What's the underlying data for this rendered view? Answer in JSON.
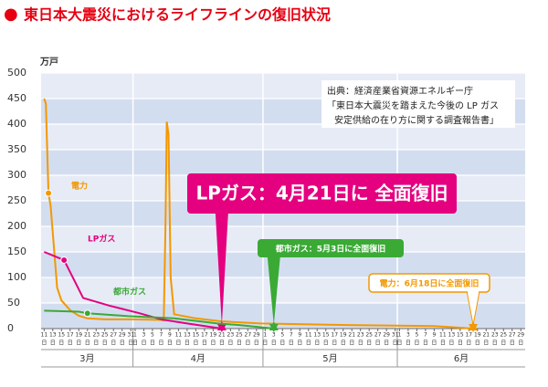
{
  "chart_data": {
    "type": "line",
    "title": "東日本大震災におけるライフラインの復旧状況",
    "title_bullet": "●",
    "y_unit": "万戸",
    "ylim": [
      0,
      500
    ],
    "yticks": [
      0,
      50,
      100,
      150,
      200,
      250,
      300,
      350,
      400,
      450,
      500
    ],
    "xlim": [
      -0.7,
      111
    ],
    "day_unit": "日",
    "xticks": [
      {
        "value": 0,
        "label": "11"
      },
      {
        "value": 2,
        "label": "13"
      },
      {
        "value": 4,
        "label": "15"
      },
      {
        "value": 6,
        "label": "17"
      },
      {
        "value": 8,
        "label": "19"
      },
      {
        "value": 10,
        "label": "21"
      },
      {
        "value": 12,
        "label": "23"
      },
      {
        "value": 14,
        "label": "25"
      },
      {
        "value": 16,
        "label": "27"
      },
      {
        "value": 18,
        "label": "29"
      },
      {
        "value": 20,
        "label": "31"
      },
      {
        "value": 21,
        "label": "1"
      },
      {
        "value": 23,
        "label": "3"
      },
      {
        "value": 25,
        "label": "5"
      },
      {
        "value": 27,
        "label": "7"
      },
      {
        "value": 29,
        "label": "9"
      },
      {
        "value": 31,
        "label": "11"
      },
      {
        "value": 33,
        "label": "13"
      },
      {
        "value": 35,
        "label": "15"
      },
      {
        "value": 37,
        "label": "17"
      },
      {
        "value": 39,
        "label": "19"
      },
      {
        "value": 41,
        "label": "21"
      },
      {
        "value": 43,
        "label": "23"
      },
      {
        "value": 45,
        "label": "25"
      },
      {
        "value": 47,
        "label": "27"
      },
      {
        "value": 49,
        "label": "29"
      },
      {
        "value": 51,
        "label": "1"
      },
      {
        "value": 53,
        "label": "3"
      },
      {
        "value": 55,
        "label": "5"
      },
      {
        "value": 57,
        "label": "7"
      },
      {
        "value": 59,
        "label": "9"
      },
      {
        "value": 61,
        "label": "11"
      },
      {
        "value": 63,
        "label": "13"
      },
      {
        "value": 65,
        "label": "15"
      },
      {
        "value": 67,
        "label": "17"
      },
      {
        "value": 69,
        "label": "19"
      },
      {
        "value": 71,
        "label": "21"
      },
      {
        "value": 73,
        "label": "23"
      },
      {
        "value": 75,
        "label": "25"
      },
      {
        "value": 77,
        "label": "27"
      },
      {
        "value": 79,
        "label": "29"
      },
      {
        "value": 81,
        "label": "31"
      },
      {
        "value": 82,
        "label": "1"
      },
      {
        "value": 84,
        "label": "3"
      },
      {
        "value": 86,
        "label": "5"
      },
      {
        "value": 88,
        "label": "7"
      },
      {
        "value": 90,
        "label": "9"
      },
      {
        "value": 92,
        "label": "11"
      },
      {
        "value": 94,
        "label": "13"
      },
      {
        "value": 96,
        "label": "15"
      },
      {
        "value": 98,
        "label": "17"
      },
      {
        "value": 100,
        "label": "19"
      },
      {
        "value": 102,
        "label": "21"
      },
      {
        "value": 104,
        "label": "23"
      },
      {
        "value": 106,
        "label": "25"
      },
      {
        "value": 108,
        "label": "27"
      },
      {
        "value": 110,
        "label": "29"
      }
    ],
    "months": [
      {
        "label": "3月",
        "start": -0.7
      },
      {
        "label": "4月",
        "start": 20.5
      },
      {
        "label": "5月",
        "start": 50.5
      },
      {
        "label": "6月",
        "start": 81.5
      }
    ],
    "series": [
      {
        "name": "電力",
        "color": "#f39800",
        "marker_index": 2,
        "x": [
          0,
          0.4,
          1,
          1.5,
          3,
          4,
          6,
          8,
          10,
          14,
          20,
          27,
          27.6,
          28,
          28.3,
          28.7,
          29.2,
          30,
          35,
          41,
          50,
          70,
          90,
          99
        ],
        "values": [
          450,
          440,
          265,
          240,
          80,
          55,
          36,
          25,
          20,
          18,
          18,
          17,
          16,
          200,
          405,
          380,
          100,
          28,
          20,
          14,
          10,
          7,
          5,
          0
        ]
      },
      {
        "name": "LPガス",
        "color": "#e4007f",
        "marker_index": 1,
        "x": [
          0,
          4.6,
          9,
          15,
          22,
          27,
          33,
          41
        ],
        "values": [
          150,
          134,
          60,
          45,
          30,
          18,
          10,
          0
        ]
      },
      {
        "name": "都市ガス",
        "color": "#3aaa35",
        "marker_index": 2,
        "x": [
          0,
          8,
          10,
          20,
          30,
          40,
          45,
          53
        ],
        "values": [
          35,
          33,
          30,
          24,
          20,
          10,
          7,
          0
        ]
      }
    ],
    "source": [
      "出典：経済産業省資源エネルギー庁",
      "「東日本大震災を踏まえた今後の LP ガス",
      "安定供給の在り方に関する調査報告書」"
    ],
    "annotations": [
      "LPガス：4月21日に 全面復旧",
      "都市ガス：5月3日に全面復旧",
      "電力：6月18日に全面復旧"
    ],
    "grid": true
  }
}
